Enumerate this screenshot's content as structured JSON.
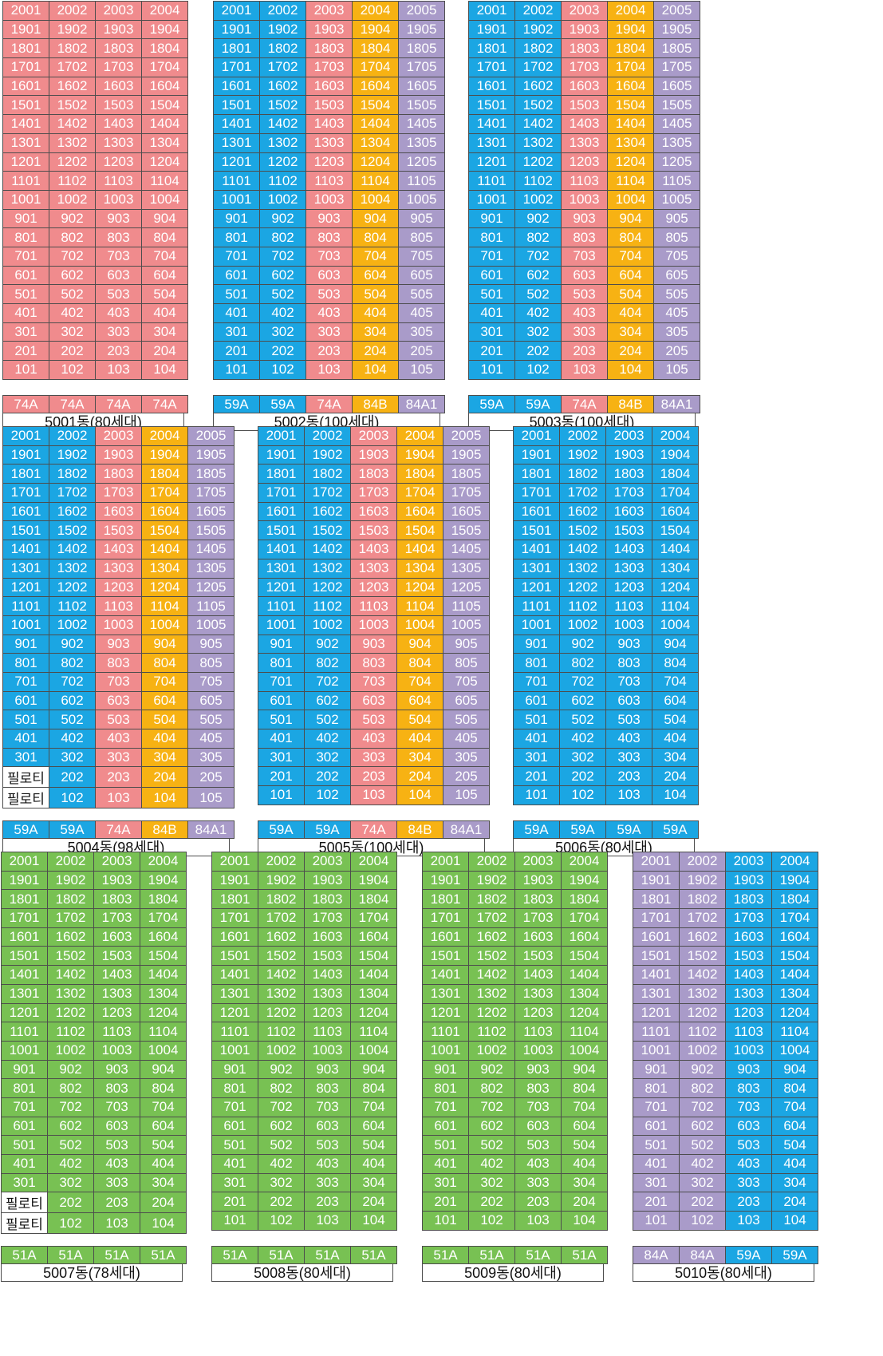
{
  "colors": {
    "pink": "#f08b8d",
    "blue": "#1ba6e3",
    "orange": "#f7b213",
    "purple": "#a99bc9",
    "green": "#78c153"
  },
  "pilotis_label": "필로티",
  "buildings": [
    {
      "name": "5001동(80세대)",
      "columns": [
        {
          "unit": "01",
          "type": "74A",
          "color": "pink"
        },
        {
          "unit": "02",
          "type": "74A",
          "color": "pink"
        },
        {
          "unit": "03",
          "type": "74A",
          "color": "pink"
        },
        {
          "unit": "04",
          "type": "74A",
          "color": "pink"
        }
      ],
      "top_floor": 20,
      "pilotis_floors": []
    },
    {
      "name": "5002동(100세대)",
      "columns": [
        {
          "unit": "01",
          "type": "59A",
          "color": "blue"
        },
        {
          "unit": "02",
          "type": "59A",
          "color": "blue"
        },
        {
          "unit": "03",
          "type": "74A",
          "color": "pink"
        },
        {
          "unit": "04",
          "type": "84B",
          "color": "orange"
        },
        {
          "unit": "05",
          "type": "84A1",
          "color": "purple"
        }
      ],
      "top_floor": 20,
      "pilotis_floors": []
    },
    {
      "name": "5003동(100세대)",
      "columns": [
        {
          "unit": "01",
          "type": "59A",
          "color": "blue"
        },
        {
          "unit": "02",
          "type": "59A",
          "color": "blue"
        },
        {
          "unit": "03",
          "type": "74A",
          "color": "pink"
        },
        {
          "unit": "04",
          "type": "84B",
          "color": "orange"
        },
        {
          "unit": "05",
          "type": "84A1",
          "color": "purple"
        }
      ],
      "top_floor": 20,
      "pilotis_floors": []
    },
    {
      "name": "5004동(98세대)",
      "columns": [
        {
          "unit": "01",
          "type": "59A",
          "color": "blue"
        },
        {
          "unit": "02",
          "type": "59A",
          "color": "blue"
        },
        {
          "unit": "03",
          "type": "74A",
          "color": "pink"
        },
        {
          "unit": "04",
          "type": "84B",
          "color": "orange"
        },
        {
          "unit": "05",
          "type": "84A1",
          "color": "purple"
        }
      ],
      "top_floor": 20,
      "pilotis_floors": [
        2,
        1
      ]
    },
    {
      "name": "5005동(100세대)",
      "columns": [
        {
          "unit": "01",
          "type": "59A",
          "color": "blue"
        },
        {
          "unit": "02",
          "type": "59A",
          "color": "blue"
        },
        {
          "unit": "03",
          "type": "74A",
          "color": "pink"
        },
        {
          "unit": "04",
          "type": "84B",
          "color": "orange"
        },
        {
          "unit": "05",
          "type": "84A1",
          "color": "purple"
        }
      ],
      "top_floor": 20,
      "pilotis_floors": []
    },
    {
      "name": "5006동(80세대)",
      "columns": [
        {
          "unit": "01",
          "type": "59A",
          "color": "blue"
        },
        {
          "unit": "02",
          "type": "59A",
          "color": "blue"
        },
        {
          "unit": "03",
          "type": "59A",
          "color": "blue"
        },
        {
          "unit": "04",
          "type": "59A",
          "color": "blue"
        }
      ],
      "top_floor": 20,
      "pilotis_floors": []
    },
    {
      "name": "5007동(78세대)",
      "columns": [
        {
          "unit": "01",
          "type": "51A",
          "color": "green"
        },
        {
          "unit": "02",
          "type": "51A",
          "color": "green"
        },
        {
          "unit": "03",
          "type": "51A",
          "color": "green"
        },
        {
          "unit": "04",
          "type": "51A",
          "color": "green"
        }
      ],
      "top_floor": 20,
      "pilotis_floors": [
        2,
        1
      ]
    },
    {
      "name": "5008동(80세대)",
      "columns": [
        {
          "unit": "01",
          "type": "51A",
          "color": "green"
        },
        {
          "unit": "02",
          "type": "51A",
          "color": "green"
        },
        {
          "unit": "03",
          "type": "51A",
          "color": "green"
        },
        {
          "unit": "04",
          "type": "51A",
          "color": "green"
        }
      ],
      "top_floor": 20,
      "pilotis_floors": []
    },
    {
      "name": "5009동(80세대)",
      "columns": [
        {
          "unit": "01",
          "type": "51A",
          "color": "green"
        },
        {
          "unit": "02",
          "type": "51A",
          "color": "green"
        },
        {
          "unit": "03",
          "type": "51A",
          "color": "green"
        },
        {
          "unit": "04",
          "type": "51A",
          "color": "green"
        }
      ],
      "top_floor": 20,
      "pilotis_floors": []
    },
    {
      "name": "5010동(80세대)",
      "columns": [
        {
          "unit": "01",
          "type": "84A",
          "color": "purple"
        },
        {
          "unit": "02",
          "type": "84A",
          "color": "purple"
        },
        {
          "unit": "03",
          "type": "59A",
          "color": "blue"
        },
        {
          "unit": "04",
          "type": "59A",
          "color": "blue"
        }
      ],
      "top_floor": 20,
      "pilotis_floors": []
    }
  ]
}
